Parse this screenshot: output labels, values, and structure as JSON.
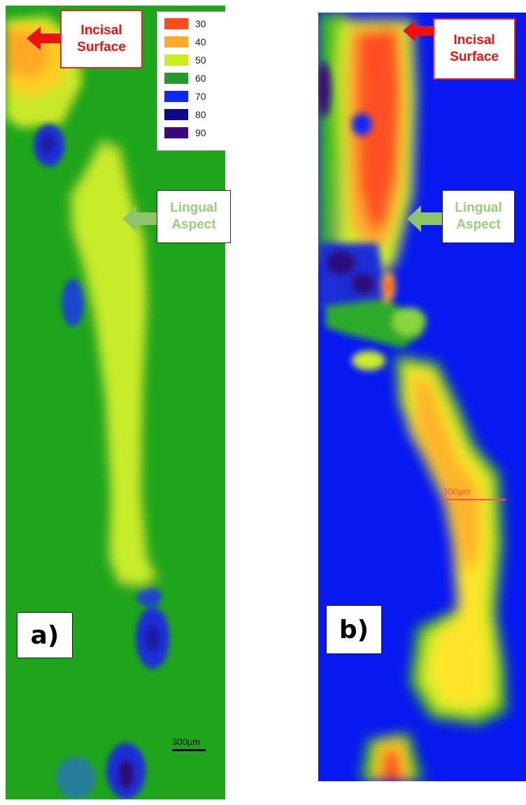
{
  "legend": {
    "entries": [
      {
        "label": "30",
        "color": "#ff4a1c"
      },
      {
        "label": "40",
        "color": "#ffab2a"
      },
      {
        "label": "50",
        "color": "#c7f01a"
      },
      {
        "label": "60",
        "color": "#249a2c"
      },
      {
        "label": "70",
        "color": "#0a28ff"
      },
      {
        "label": "80",
        "color": "#0a0a8a"
      },
      {
        "label": "90",
        "color": "#3a0a7a"
      }
    ]
  },
  "panel_a": {
    "label": "a)",
    "incisal_callout": [
      "Incisal",
      "Surface"
    ],
    "lingual_callout": [
      "Lingual",
      "Aspect"
    ],
    "scale_bar": "300µm"
  },
  "panel_b": {
    "label": "b)",
    "incisal_callout": [
      "Incisal",
      "Surface"
    ],
    "lingual_callout": [
      "Lingual",
      "Aspect"
    ],
    "scale_bar": "300µm"
  },
  "colors": {
    "incisal_text": "#ee1111",
    "lingual_text": "#9acd7a",
    "arrow_red": "#ee1111",
    "arrow_green": "#8fc46a"
  }
}
